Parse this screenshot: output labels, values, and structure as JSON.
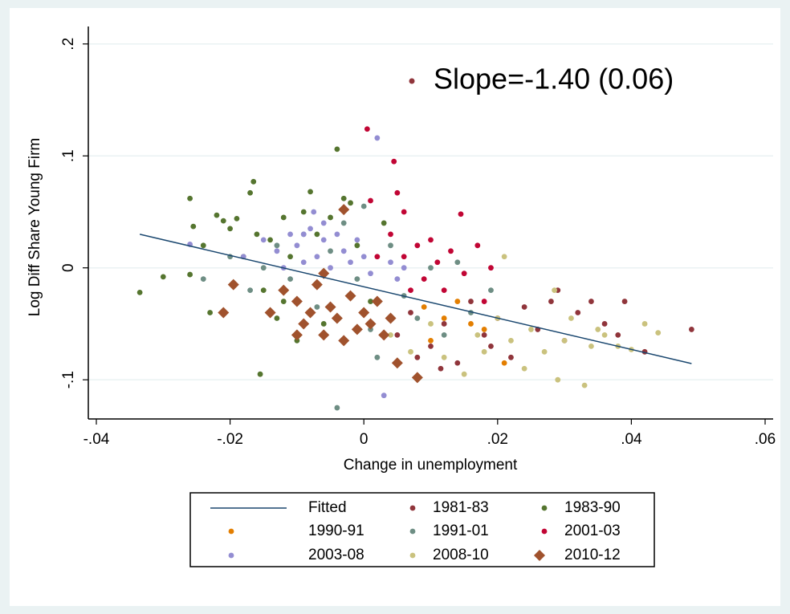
{
  "chart_data": {
    "type": "scatter",
    "x_label": "Change in unemployment",
    "y_label": "Log Diff Share Young Firm",
    "annotation": "Slope=-1.40 (0.06)",
    "xlim": [
      -0.0412,
      0.0612
    ],
    "ylim": [
      -0.135,
      0.207
    ],
    "xticks": [
      {
        "value": -0.04,
        "label": "-.04"
      },
      {
        "value": -0.02,
        "label": "-.02"
      },
      0,
      {
        "value": 0.02,
        "label": ".02"
      },
      {
        "value": 0.04,
        "label": ".04"
      },
      {
        "value": 0.06,
        "label": ".06"
      }
    ],
    "yticks": [
      {
        "value": -0.1,
        "label": "-.1"
      },
      0,
      {
        "value": 0.1,
        "label": ".1"
      },
      {
        "value": 0.2,
        "label": ".2"
      }
    ],
    "grid": true,
    "legend": "bottom",
    "series": [
      {
        "name": "Fitted",
        "type": "line",
        "color": "#1a476f",
        "x": [
          -0.0335,
          0.049
        ],
        "values": [
          0.03,
          -0.0855
        ]
      },
      {
        "name": "1981-83",
        "shape": "circle",
        "color": "#90353b",
        "x": [
          0.005,
          0.007,
          0.01,
          0.012,
          0.014,
          0.016,
          0.018,
          0.02,
          0.022,
          0.024,
          0.026,
          0.028,
          0.029,
          0.03,
          0.032,
          0.034,
          0.036,
          0.038,
          0.039,
          0.042,
          0.049,
          0.0115,
          0.008,
          0.019
        ],
        "values": [
          -0.06,
          -0.04,
          -0.07,
          -0.05,
          -0.085,
          -0.03,
          -0.06,
          -0.045,
          -0.08,
          -0.035,
          -0.055,
          -0.03,
          -0.02,
          -0.065,
          -0.04,
          -0.03,
          -0.05,
          -0.06,
          -0.03,
          -0.075,
          -0.055,
          -0.09,
          -0.08,
          -0.07
        ]
      },
      {
        "name": "1983-90",
        "shape": "circle",
        "color": "#55752f",
        "x": [
          -0.0335,
          -0.03,
          -0.026,
          -0.0255,
          -0.026,
          -0.024,
          -0.022,
          -0.021,
          -0.02,
          -0.019,
          -0.018,
          -0.017,
          -0.0165,
          -0.016,
          -0.015,
          -0.0155,
          -0.014,
          -0.013,
          -0.012,
          -0.011,
          -0.01,
          -0.008,
          -0.007,
          -0.006,
          -0.004,
          -0.003,
          -0.002,
          -0.001,
          0.001,
          0.003,
          -0.023,
          -0.012,
          -0.009,
          -0.005
        ],
        "values": [
          -0.022,
          -0.008,
          0.062,
          0.037,
          -0.006,
          0.02,
          0.047,
          0.042,
          0.035,
          0.044,
          0.01,
          0.067,
          0.077,
          0.03,
          -0.02,
          -0.095,
          0.025,
          -0.045,
          0.045,
          0.01,
          -0.065,
          0.068,
          0.03,
          -0.05,
          0.106,
          0.062,
          0.058,
          0.02,
          -0.03,
          0.04,
          -0.04,
          -0.03,
          0.05,
          0.045
        ]
      },
      {
        "name": "1990-91",
        "shape": "circle",
        "color": "#e37e00",
        "x": [
          0.009,
          0.012,
          0.01,
          0.016,
          0.021,
          0.014,
          0.018
        ],
        "values": [
          -0.035,
          -0.045,
          -0.065,
          -0.05,
          -0.085,
          -0.03,
          -0.055
        ]
      },
      {
        "name": "1991-01",
        "shape": "circle",
        "color": "#6e8e84",
        "x": [
          -0.024,
          -0.02,
          -0.017,
          -0.015,
          -0.013,
          -0.011,
          -0.009,
          -0.007,
          -0.005,
          -0.004,
          -0.003,
          -0.001,
          0.0,
          0.001,
          0.002,
          0.004,
          0.006,
          0.008,
          0.01,
          0.012,
          0.014,
          0.016,
          0.019
        ],
        "values": [
          -0.01,
          0.01,
          -0.02,
          0.0,
          0.02,
          -0.01,
          0.03,
          -0.035,
          0.015,
          -0.125,
          0.04,
          -0.01,
          0.055,
          -0.055,
          -0.08,
          0.02,
          -0.025,
          -0.045,
          0.0,
          -0.06,
          0.005,
          -0.04,
          -0.02
        ]
      },
      {
        "name": "2001-03",
        "shape": "circle",
        "color": "#c10534",
        "x": [
          0.0005,
          0.001,
          0.0045,
          0.005,
          0.006,
          0.004,
          0.006,
          0.008,
          0.009,
          0.01,
          0.011,
          0.012,
          0.013,
          0.0145,
          0.015,
          0.017,
          0.018,
          0.019,
          0.007,
          0.002
        ],
        "values": [
          0.124,
          0.06,
          0.095,
          0.067,
          0.05,
          0.03,
          0.01,
          0.02,
          -0.01,
          0.025,
          0.005,
          -0.02,
          0.015,
          0.048,
          -0.005,
          0.02,
          -0.03,
          0.0,
          -0.02,
          0.01
        ]
      },
      {
        "name": "2003-08",
        "shape": "circle",
        "color": "#938dd2",
        "x": [
          -0.026,
          -0.018,
          -0.015,
          -0.013,
          -0.012,
          -0.011,
          -0.01,
          -0.009,
          -0.008,
          -0.0075,
          -0.007,
          -0.006,
          -0.005,
          -0.004,
          -0.003,
          -0.002,
          -0.001,
          0.0,
          0.001,
          0.002,
          0.003,
          0.004,
          0.005,
          0.006,
          -0.009,
          -0.006
        ],
        "values": [
          0.021,
          0.01,
          0.025,
          0.015,
          0.0,
          0.03,
          0.02,
          0.005,
          0.035,
          0.05,
          0.01,
          0.025,
          0.0,
          0.03,
          0.015,
          0.005,
          0.025,
          0.01,
          -0.005,
          0.116,
          -0.114,
          0.005,
          -0.01,
          0.0,
          0.03,
          0.04
        ]
      },
      {
        "name": "2008-10",
        "shape": "circle",
        "color": "#cac27e",
        "x": [
          0.004,
          0.007,
          0.01,
          0.012,
          0.015,
          0.017,
          0.018,
          0.02,
          0.021,
          0.022,
          0.024,
          0.025,
          0.027,
          0.029,
          0.03,
          0.031,
          0.033,
          0.034,
          0.035,
          0.036,
          0.038,
          0.04,
          0.042,
          0.044,
          0.0285
        ],
        "values": [
          -0.06,
          -0.075,
          -0.05,
          -0.08,
          -0.095,
          -0.06,
          -0.075,
          -0.045,
          0.01,
          -0.065,
          -0.09,
          -0.055,
          -0.075,
          -0.1,
          -0.065,
          -0.045,
          -0.105,
          -0.07,
          -0.055,
          -0.06,
          -0.07,
          -0.073,
          -0.05,
          -0.058,
          -0.02
        ]
      },
      {
        "name": "2010-12",
        "shape": "diamond",
        "color": "#a0522d",
        "x": [
          -0.021,
          -0.0195,
          -0.014,
          -0.012,
          -0.01,
          -0.009,
          -0.008,
          -0.007,
          -0.006,
          -0.005,
          -0.004,
          -0.003,
          -0.003,
          -0.002,
          -0.001,
          0.0,
          0.001,
          0.002,
          0.003,
          0.004,
          0.005,
          0.008,
          -0.01,
          -0.006
        ],
        "values": [
          -0.04,
          -0.015,
          -0.04,
          -0.02,
          -0.03,
          -0.05,
          -0.04,
          -0.015,
          -0.06,
          -0.035,
          -0.045,
          0.052,
          -0.065,
          -0.025,
          -0.055,
          -0.04,
          -0.05,
          -0.03,
          -0.06,
          -0.045,
          -0.085,
          -0.098,
          -0.06,
          -0.005
        ]
      }
    ]
  }
}
